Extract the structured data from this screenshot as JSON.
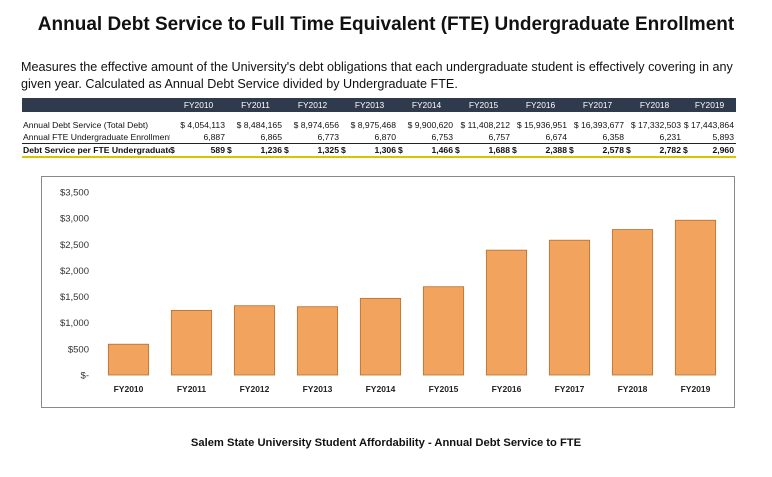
{
  "title": "Annual Debt Service to Full Time Equivalent (FTE) Undergraduate Enrollment",
  "description": "Measures the effective amount of the University's debt obligations that each undergraduate student is effectively covering in any given year. Calculated as Annual Debt Service divided by Undergraduate FTE.",
  "table": {
    "columns": [
      "FY2010",
      "FY2011",
      "FY2012",
      "FY2013",
      "FY2014",
      "FY2015",
      "FY2016",
      "FY2017",
      "FY2018",
      "FY2019"
    ],
    "rows": [
      {
        "label": "Annual Debt Service (Total Debt)",
        "cells": [
          "$ 4,054,113",
          "$ 8,484,165",
          "$ 8,974,656",
          "$ 8,975,468",
          "$ 9,900,620",
          "$ 11,408,212",
          "$ 15,936,951",
          "$ 16,393,677",
          "$ 17,332,503",
          "$ 17,443,864"
        ]
      },
      {
        "label": "Annual FTE Undergraduate Enrollment",
        "cells": [
          "6,887",
          "6,865",
          "6,773",
          "6,870",
          "6,753",
          "6,757",
          "6,674",
          "6,358",
          "6,231",
          "5,893"
        ]
      },
      {
        "label": "Debt Service per FTE Undergraduate",
        "cells": [
          "589",
          "1,236",
          "1,325",
          "1,306",
          "1,466",
          "1,688",
          "2,388",
          "2,578",
          "2,782",
          "2,960"
        ],
        "currency": "$"
      }
    ]
  },
  "chart_data": {
    "type": "bar",
    "categories": [
      "FY2010",
      "FY2011",
      "FY2012",
      "FY2013",
      "FY2014",
      "FY2015",
      "FY2016",
      "FY2017",
      "FY2018",
      "FY2019"
    ],
    "values": [
      589,
      1236,
      1325,
      1306,
      1466,
      1688,
      2388,
      2578,
      2782,
      2960
    ],
    "ylim": [
      0,
      3500
    ],
    "yticks": [
      0,
      500,
      1000,
      1500,
      2000,
      2500,
      3000,
      3500
    ],
    "ytick_labels": [
      "$-",
      "$500",
      "$1,000",
      "$1,500",
      "$2,000",
      "$2,500",
      "$3,000",
      "$3,500"
    ],
    "grid": false,
    "legend": "none",
    "bar_color": "#f2a35e",
    "bar_edge_color": "#b56f2f"
  },
  "caption": "Salem State University Student Affordability -  Annual Debt Service to FTE"
}
